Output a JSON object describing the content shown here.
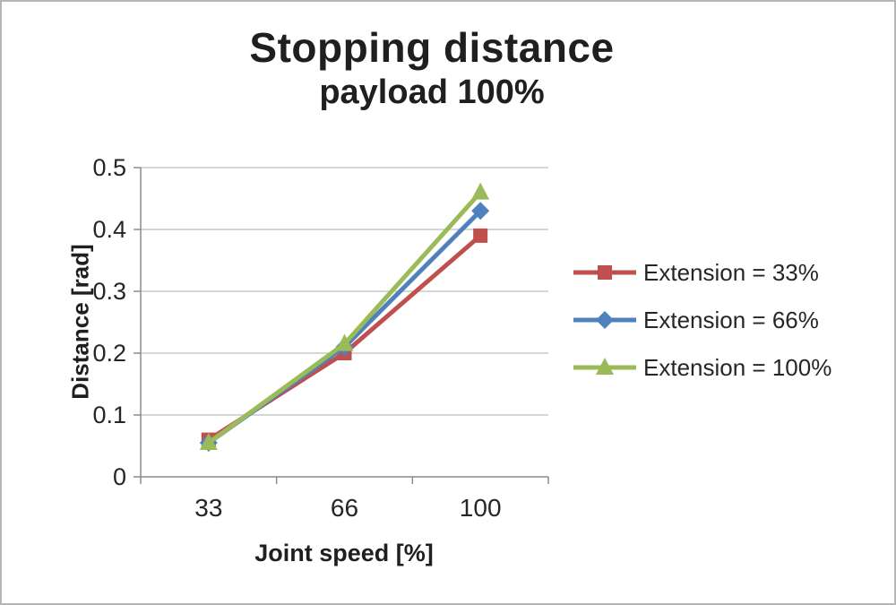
{
  "chart": {
    "title": "Stopping distance",
    "subtitle": "payload 100%",
    "xlabel": "Joint speed [%]",
    "ylabel": "Distance [rad]"
  },
  "chart_data": {
    "type": "line",
    "title": "Stopping distance",
    "subtitle": "payload 100%",
    "xlabel": "Joint speed [%]",
    "ylabel": "Distance [rad]",
    "categories": [
      "33",
      "66",
      "100"
    ],
    "series": [
      {
        "name": "Extension = 33%",
        "values": [
          0.06,
          0.2,
          0.39
        ],
        "color": "#c0504d",
        "marker": "square"
      },
      {
        "name": "Extension = 66%",
        "values": [
          0.055,
          0.21,
          0.43
        ],
        "color": "#4f81bd",
        "marker": "diamond"
      },
      {
        "name": "Extension = 100%",
        "values": [
          0.055,
          0.215,
          0.46
        ],
        "color": "#9bbb59",
        "marker": "triangle"
      }
    ],
    "ylim": [
      0,
      0.5
    ],
    "yticks": [
      0,
      0.1,
      0.2,
      0.3,
      0.4,
      0.5
    ],
    "ytick_labels": [
      "0",
      "0.1",
      "0.2",
      "0.3",
      "0.4",
      "0.5"
    ],
    "grid": true,
    "legend_position": "right"
  }
}
